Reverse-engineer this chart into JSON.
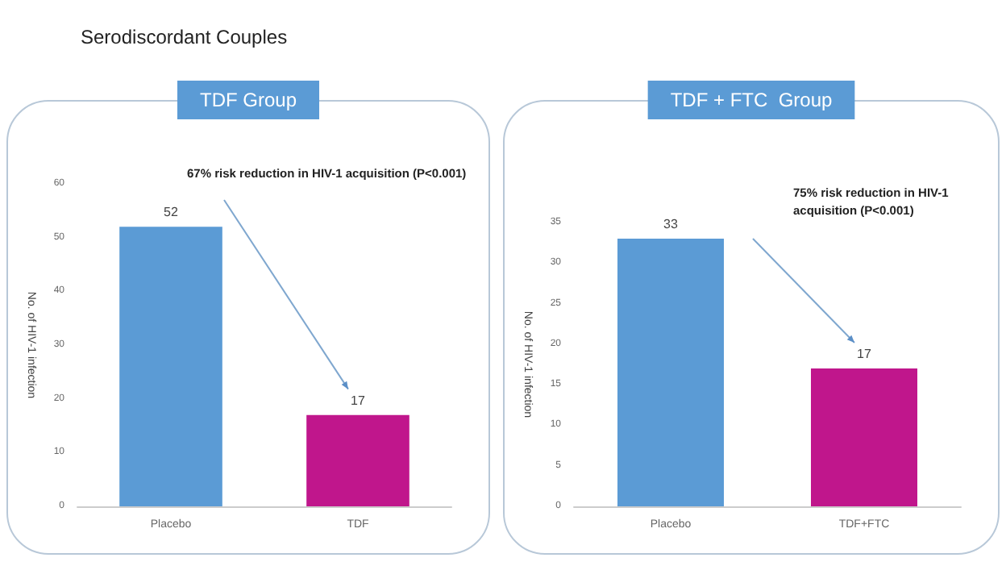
{
  "chart_data": [
    {
      "type": "bar",
      "title": "TDF Group",
      "ylabel": "No. of HIV-1 infection",
      "categories": [
        "Placebo",
        "TDF"
      ],
      "values": [
        52,
        17
      ],
      "colors": [
        "#5b9bd5",
        "#c0168c"
      ],
      "ylim": [
        0,
        60
      ],
      "yticks": [
        0,
        10,
        20,
        30,
        40,
        50,
        60
      ],
      "grid": false,
      "data_labels": true,
      "annotations": [
        "Serodiscordant Couples",
        "67% risk reduction in HIV-1 acquisition (P<0.001)"
      ]
    },
    {
      "type": "bar",
      "title": "TDF + FTC  Group",
      "ylabel": "No. of HIV-1 infection",
      "categories": [
        "Placebo",
        "TDF+FTC"
      ],
      "values": [
        33,
        17
      ],
      "colors": [
        "#5b9bd5",
        "#c0168c"
      ],
      "ylim": [
        0,
        35
      ],
      "yticks": [
        0,
        5,
        10,
        15,
        20,
        25,
        30,
        35
      ],
      "grid": false,
      "data_labels": true,
      "annotations": [
        "75% risk reduction in HIV-1\nacquisition (P<0.001)"
      ]
    }
  ]
}
